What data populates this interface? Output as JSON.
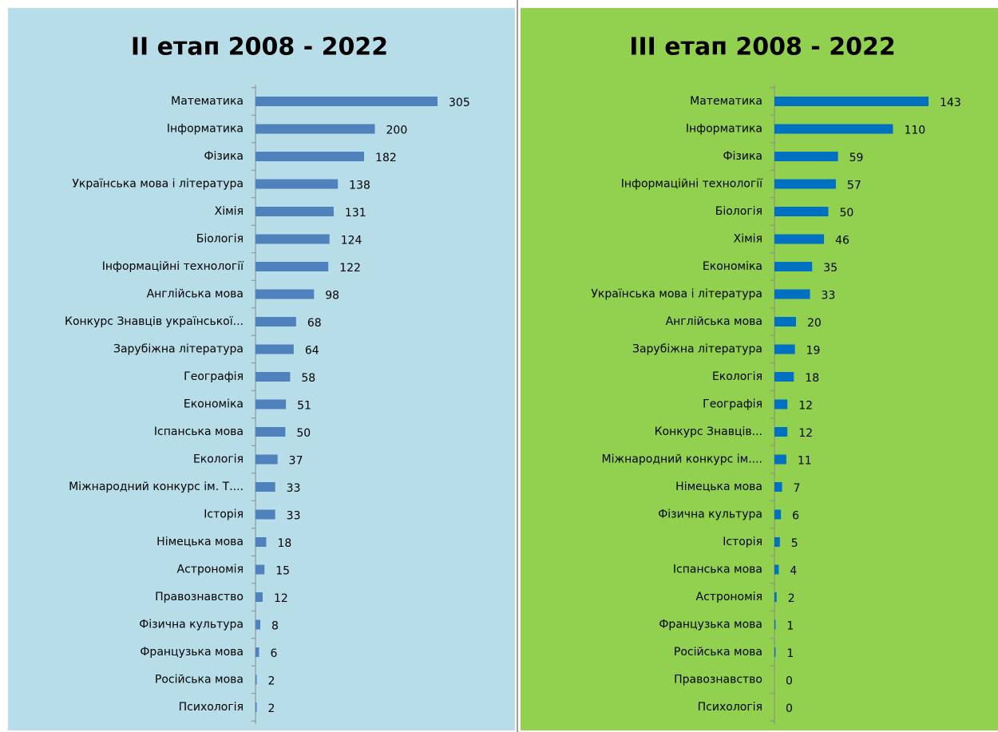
{
  "chart_data": [
    {
      "type": "bar",
      "orientation": "horizontal",
      "title": "ІІ етап 2008 - 2022",
      "color": "#4f81bd",
      "categories": [
        "Математика",
        "Інформатика",
        "Фізика",
        "Українська мова і література",
        "Хімія",
        "Біологія",
        "Інформаційні технології",
        "Англійська мова",
        "Конкурс Знавців української...",
        "Зарубіжна література",
        "Географія",
        "Економіка",
        "Іспанська мова",
        "Екологія",
        "Міжнародний конкурс ім. Т....",
        "Історія",
        "Німецька мова",
        "Астрономія",
        "Правознавство",
        "Фізична культура",
        "Французька мова",
        "Російська мова",
        "Психологія"
      ],
      "values": [
        305,
        200,
        182,
        138,
        131,
        124,
        122,
        98,
        68,
        64,
        58,
        51,
        50,
        37,
        33,
        33,
        18,
        15,
        12,
        8,
        6,
        2,
        2
      ]
    },
    {
      "type": "bar",
      "orientation": "horizontal",
      "title": "ІІІ етап 2008 - 2022",
      "color": "#0070c0",
      "categories": [
        "Математика",
        "Інформатика",
        "Фізика",
        "Інформаційні технології",
        "Біологія",
        "Хімія",
        "Економіка",
        "Українська мова і література",
        "Англійська мова",
        "Зарубіжна література",
        "Екологія",
        "Географія",
        "Конкурс Знавців...",
        "Міжнародний конкурс ім....",
        "Німецька мова",
        "Фізична культура",
        "Історія",
        "Іспанська мова",
        "Астрономія",
        "Французька мова",
        "Російська мова",
        "Правознавство",
        "Психологія"
      ],
      "values": [
        143,
        110,
        59,
        57,
        50,
        46,
        35,
        33,
        20,
        19,
        18,
        12,
        12,
        11,
        7,
        6,
        5,
        4,
        2,
        1,
        1,
        0,
        0
      ]
    }
  ]
}
